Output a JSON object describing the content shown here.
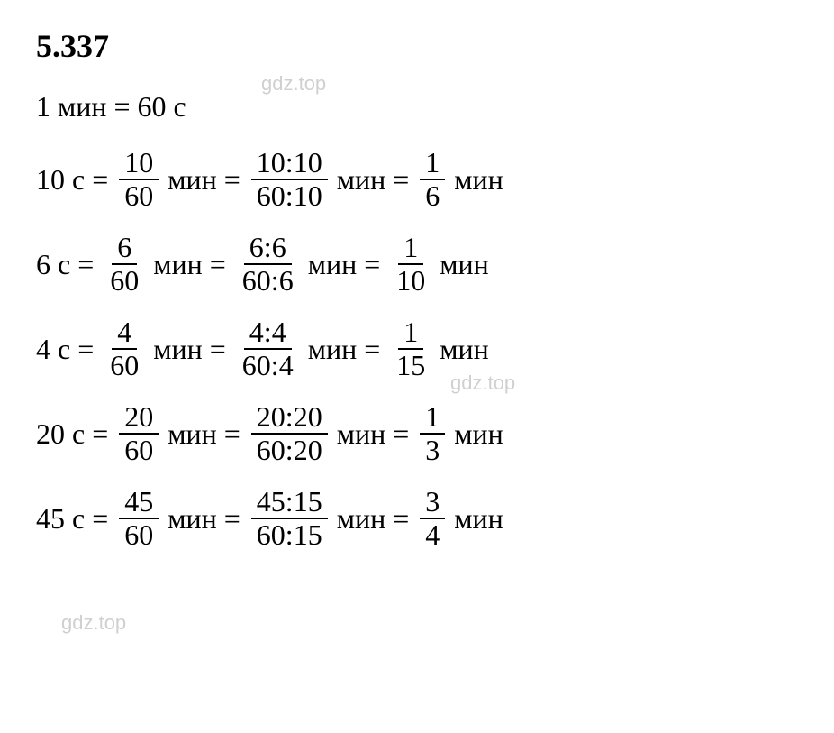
{
  "title": "5.337",
  "subtitle": {
    "lhs": "1 мин",
    "equals": "=",
    "rhs": "60 с"
  },
  "watermarks": {
    "wm1": "gdz.top",
    "wm2": "gdz.top",
    "wm3": "gdz.top"
  },
  "equations": [
    {
      "lhs": "10 с",
      "step1": {
        "num": "10",
        "den": "60",
        "unit": "мин"
      },
      "step2": {
        "num": "10:10",
        "den": "60:10",
        "unit": "мин"
      },
      "step3": {
        "num": "1",
        "den": "6",
        "unit": "мин"
      }
    },
    {
      "lhs": "6 с",
      "step1": {
        "num": "6",
        "den": "60",
        "unit": "мин"
      },
      "step2": {
        "num": "6:6",
        "den": "60:6",
        "unit": "мин"
      },
      "step3": {
        "num": "1",
        "den": "10",
        "unit": "мин"
      }
    },
    {
      "lhs": "4 с",
      "step1": {
        "num": "4",
        "den": "60",
        "unit": "мин"
      },
      "step2": {
        "num": "4:4",
        "den": "60:4",
        "unit": "мин"
      },
      "step3": {
        "num": "1",
        "den": "15",
        "unit": "мин"
      }
    },
    {
      "lhs": "20 с",
      "step1": {
        "num": "20",
        "den": "60",
        "unit": "мин"
      },
      "step2": {
        "num": "20:20",
        "den": "60:20",
        "unit": "мин"
      },
      "step3": {
        "num": "1",
        "den": "3",
        "unit": "мин"
      }
    },
    {
      "lhs": "45 с",
      "step1": {
        "num": "45",
        "den": "60",
        "unit": "мин"
      },
      "step2": {
        "num": "45:15",
        "den": "60:15",
        "unit": "мин"
      },
      "step3": {
        "num": "3",
        "den": "4",
        "unit": "мин"
      }
    }
  ]
}
